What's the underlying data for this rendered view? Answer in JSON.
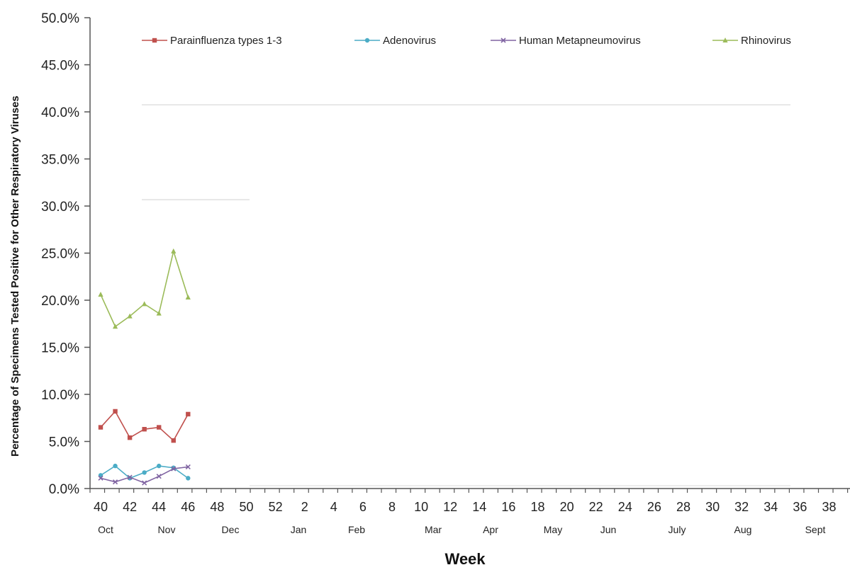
{
  "chart_data": {
    "type": "line",
    "xlabel": "Week",
    "ylabel": "Percentage of Specimens Tested Positive for Other Respiratory Viruses",
    "ylim": [
      0,
      50
    ],
    "y_tick_labels": [
      "0.0%",
      "5.0%",
      "10.0%",
      "15.0%",
      "20.0%",
      "25.0%",
      "30.0%",
      "35.0%",
      "40.0%",
      "45.0%",
      "50.0%"
    ],
    "x_tick_labels": [
      "40",
      "42",
      "44",
      "46",
      "48",
      "50",
      "52",
      "2",
      "4",
      "6",
      "8",
      "10",
      "12",
      "14",
      "16",
      "18",
      "20",
      "22",
      "24",
      "26",
      "28",
      "30",
      "32",
      "34",
      "36",
      "38"
    ],
    "month_labels": [
      "Oct",
      "Nov",
      "Dec",
      "Jan",
      "Feb",
      "Mar",
      "Apr",
      "May",
      "Jun",
      "July",
      "Aug",
      "Sept"
    ],
    "x": [
      40,
      41,
      42,
      43,
      44,
      45,
      46
    ],
    "legend_position": "top",
    "grid": false,
    "series": [
      {
        "name": "Parainfluenza types 1-3",
        "color": "#c0504d",
        "marker": "square",
        "values": [
          6.5,
          8.2,
          5.4,
          6.3,
          6.5,
          5.1,
          7.9
        ]
      },
      {
        "name": "Adenovirus",
        "color": "#4bacc6",
        "marker": "circle",
        "values": [
          1.4,
          2.4,
          1.1,
          1.7,
          2.4,
          2.2,
          1.1
        ]
      },
      {
        "name": "Human Metapneumovirus",
        "color": "#8064a2",
        "marker": "x",
        "values": [
          1.1,
          0.7,
          1.2,
          0.6,
          1.3,
          2.1,
          2.3
        ]
      },
      {
        "name": "Rhinovirus",
        "color": "#9bbb59",
        "marker": "triangle",
        "values": [
          20.6,
          17.2,
          18.3,
          19.6,
          18.6,
          25.2,
          20.3
        ]
      }
    ]
  }
}
